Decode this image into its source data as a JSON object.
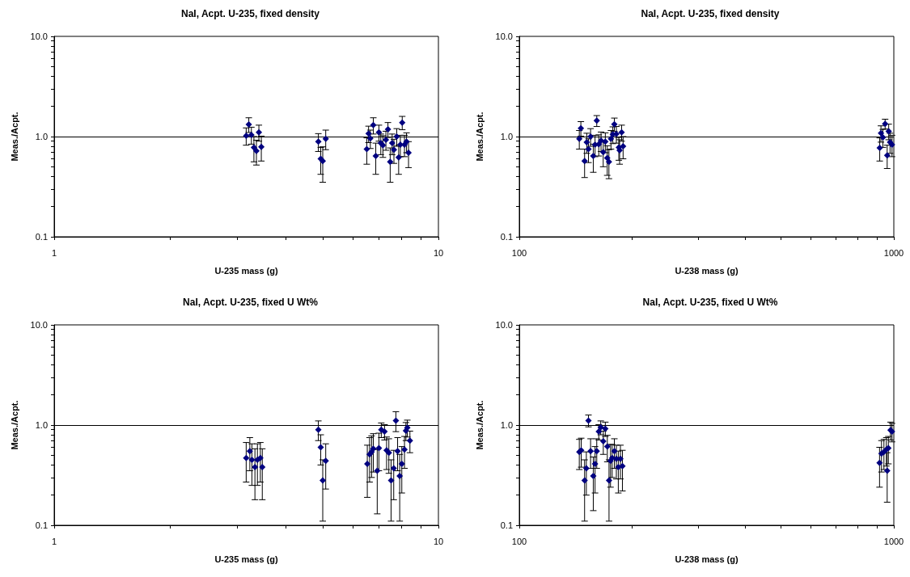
{
  "chart_data": [
    {
      "type": "scatter",
      "title": "NaI, Acpt. U-235, fixed density",
      "xlabel": "U-235 mass (g)",
      "ylabel": "Meas./Acpt.",
      "log": "xy",
      "grid": false,
      "marker": "diamond",
      "xlim": [
        1,
        10
      ],
      "ylim": [
        0.1,
        10
      ],
      "xticks": [
        1,
        {
          "value": 2,
          "label": null
        },
        {
          "value": 3,
          "label": null
        },
        {
          "value": 4,
          "label": null
        },
        {
          "value": 5,
          "label": null
        },
        {
          "value": 6,
          "label": null
        },
        {
          "value": 7,
          "label": null
        },
        {
          "value": 8,
          "label": null
        },
        {
          "value": 9,
          "label": null
        },
        10
      ],
      "yticks": [
        {
          "value": 0.1,
          "label": "0.1"
        },
        {
          "value": 0.2,
          "label": null
        },
        {
          "value": 0.3,
          "label": null
        },
        {
          "value": 0.4,
          "label": null
        },
        {
          "value": 0.5,
          "label": null
        },
        {
          "value": 0.6,
          "label": null
        },
        {
          "value": 0.7,
          "label": null
        },
        {
          "value": 0.8,
          "label": null
        },
        {
          "value": 0.9,
          "label": null
        },
        {
          "value": 1,
          "label": "1.0"
        },
        {
          "value": 2,
          "label": null
        },
        {
          "value": 3,
          "label": null
        },
        {
          "value": 4,
          "label": null
        },
        {
          "value": 5,
          "label": null
        },
        {
          "value": 6,
          "label": null
        },
        {
          "value": 7,
          "label": null
        },
        {
          "value": 8,
          "label": null
        },
        {
          "value": 9,
          "label": null
        },
        {
          "value": 10,
          "label": "10.0"
        }
      ],
      "ref_lines": [
        {
          "axis": "y",
          "value": 1,
          "label": null,
          "color": "#000000"
        }
      ],
      "series": [
        {
          "color": "#000080",
          "x": [
            3.16,
            3.21,
            3.26,
            3.31,
            3.36,
            3.41,
            3.46,
            4.87,
            4.94,
            5.0,
            5.09,
            6.51,
            6.58,
            6.65,
            6.77,
            6.87,
            7.0,
            7.08,
            7.17,
            7.3,
            7.39,
            7.49,
            7.58,
            7.66,
            7.79,
            7.88,
            7.96,
            8.05,
            8.16,
            8.26,
            8.36
          ],
          "values": [
            1.02,
            1.32,
            1.04,
            0.78,
            0.72,
            1.1,
            0.79,
            0.89,
            0.6,
            0.57,
            0.95,
            0.75,
            1.07,
            0.96,
            1.3,
            0.64,
            1.1,
            0.86,
            0.82,
            0.93,
            1.18,
            0.56,
            0.86,
            0.74,
            1.0,
            0.62,
            0.83,
            1.38,
            0.83,
            0.89,
            0.69
          ],
          "errors": [
            0.2,
            0.22,
            0.2,
            0.22,
            0.2,
            0.2,
            0.22,
            0.18,
            0.18,
            0.22,
            0.21,
            0.22,
            0.2,
            0.2,
            0.24,
            0.22,
            0.2,
            0.2,
            0.2,
            0.2,
            0.2,
            0.21,
            0.2,
            0.2,
            0.2,
            0.2,
            0.2,
            0.21,
            0.2,
            0.2,
            0.2
          ]
        }
      ]
    },
    {
      "type": "scatter",
      "title": "NaI, Acpt. U-235, fixed density",
      "xlabel": "U-238 mass (g)",
      "ylabel": "Meas./Acpt.",
      "log": "xy",
      "grid": false,
      "marker": "diamond",
      "xlim": [
        100,
        1000
      ],
      "ylim": [
        0.1,
        10
      ],
      "xticks": [
        100,
        {
          "value": 200,
          "label": null
        },
        {
          "value": 300,
          "label": null
        },
        {
          "value": 400,
          "label": null
        },
        {
          "value": 500,
          "label": null
        },
        {
          "value": 600,
          "label": null
        },
        {
          "value": 700,
          "label": null
        },
        {
          "value": 800,
          "label": null
        },
        {
          "value": 900,
          "label": null
        },
        1000
      ],
      "yticks": [
        {
          "value": 0.1,
          "label": "0.1"
        },
        {
          "value": 0.2,
          "label": null
        },
        {
          "value": 0.3,
          "label": null
        },
        {
          "value": 0.4,
          "label": null
        },
        {
          "value": 0.5,
          "label": null
        },
        {
          "value": 0.6,
          "label": null
        },
        {
          "value": 0.7,
          "label": null
        },
        {
          "value": 0.8,
          "label": null
        },
        {
          "value": 0.9,
          "label": null
        },
        {
          "value": 1,
          "label": "1.0"
        },
        {
          "value": 2,
          "label": null
        },
        {
          "value": 3,
          "label": null
        },
        {
          "value": 4,
          "label": null
        },
        {
          "value": 5,
          "label": null
        },
        {
          "value": 6,
          "label": null
        },
        {
          "value": 7,
          "label": null
        },
        {
          "value": 8,
          "label": null
        },
        {
          "value": 9,
          "label": null
        },
        {
          "value": 10,
          "label": "10.0"
        }
      ],
      "ref_lines": [
        {
          "axis": "y",
          "value": 1,
          "label": null,
          "color": "#000000"
        }
      ],
      "series": [
        {
          "color": "#000080",
          "x": [
            144.6,
            146,
            149.4,
            151.4,
            153,
            155,
            157.6,
            159.3,
            161,
            163,
            165.3,
            167.5,
            169.7,
            171.7,
            173.5,
            175.7,
            177.7,
            179.4,
            181.6,
            184.4,
            185.3,
            187.6,
            189.3,
            917,
            924,
            935,
            948,
            960,
            969,
            977,
            989
          ],
          "values": [
            0.95,
            1.21,
            0.57,
            0.88,
            0.75,
            1.0,
            0.64,
            0.83,
            1.44,
            0.84,
            0.91,
            0.7,
            0.89,
            0.61,
            0.56,
            0.95,
            1.05,
            1.33,
            1.06,
            0.78,
            0.73,
            1.1,
            0.8,
            0.77,
            1.08,
            0.98,
            1.34,
            0.65,
            1.13,
            0.88,
            0.83
          ],
          "errors": [
            0.2,
            0.2,
            0.18,
            0.2,
            0.2,
            0.2,
            0.2,
            0.2,
            0.18,
            0.2,
            0.2,
            0.2,
            0.2,
            0.2,
            0.18,
            0.2,
            0.2,
            0.2,
            0.2,
            0.2,
            0.2,
            0.2,
            0.2,
            0.2,
            0.2,
            0.2,
            0.15,
            0.17,
            0.2,
            0.2,
            0.2
          ]
        }
      ]
    },
    {
      "type": "scatter",
      "title": "NaI, Acpt. U-235, fixed U Wt%",
      "xlabel": "U-235 mass (g)",
      "ylabel": "Meas./Acpt.",
      "log": "xy",
      "grid": false,
      "marker": "diamond",
      "xlim": [
        1,
        10
      ],
      "ylim": [
        0.1,
        10
      ],
      "xticks": [
        1,
        {
          "value": 2,
          "label": null
        },
        {
          "value": 3,
          "label": null
        },
        {
          "value": 4,
          "label": null
        },
        {
          "value": 5,
          "label": null
        },
        {
          "value": 6,
          "label": null
        },
        {
          "value": 7,
          "label": null
        },
        {
          "value": 8,
          "label": null
        },
        {
          "value": 9,
          "label": null
        },
        10
      ],
      "yticks": [
        {
          "value": 0.1,
          "label": "0.1"
        },
        {
          "value": 0.2,
          "label": null
        },
        {
          "value": 0.3,
          "label": null
        },
        {
          "value": 0.4,
          "label": null
        },
        {
          "value": 0.5,
          "label": null
        },
        {
          "value": 0.6,
          "label": null
        },
        {
          "value": 0.7,
          "label": null
        },
        {
          "value": 0.8,
          "label": null
        },
        {
          "value": 0.9,
          "label": null
        },
        {
          "value": 1,
          "label": "1.0"
        },
        {
          "value": 2,
          "label": null
        },
        {
          "value": 3,
          "label": null
        },
        {
          "value": 4,
          "label": null
        },
        {
          "value": 5,
          "label": null
        },
        {
          "value": 6,
          "label": null
        },
        {
          "value": 7,
          "label": null
        },
        {
          "value": 8,
          "label": null
        },
        {
          "value": 9,
          "label": null
        },
        {
          "value": 10,
          "label": "10.0"
        }
      ],
      "ref_lines": [
        {
          "axis": "y",
          "value": 1,
          "label": null,
          "color": "#000000"
        }
      ],
      "series": [
        {
          "color": "#000080",
          "x": [
            3.16,
            3.23,
            3.27,
            3.33,
            3.38,
            3.44,
            3.48,
            4.87,
            4.94,
            5.0,
            5.09,
            6.53,
            6.62,
            6.7,
            6.77,
            6.93,
            7.0,
            7.1,
            7.24,
            7.33,
            7.43,
            7.53,
            7.65,
            7.75,
            7.83,
            7.93,
            8.03,
            8.16,
            8.23,
            8.3,
            8.43
          ],
          "values": [
            0.47,
            0.55,
            0.45,
            0.38,
            0.45,
            0.47,
            0.38,
            0.9,
            0.6,
            0.28,
            0.44,
            0.41,
            0.51,
            0.54,
            0.58,
            0.35,
            0.59,
            0.9,
            0.86,
            0.56,
            0.53,
            0.28,
            0.37,
            1.11,
            0.55,
            0.31,
            0.41,
            0.57,
            0.88,
            0.94,
            0.7
          ],
          "errors": [
            0.2,
            0.2,
            0.2,
            0.2,
            0.2,
            0.2,
            0.2,
            0.2,
            0.2,
            0.17,
            0.21,
            0.22,
            0.24,
            0.24,
            0.24,
            0.22,
            0.24,
            0.15,
            0.15,
            0.2,
            0.2,
            0.17,
            0.19,
            0.25,
            0.2,
            0.2,
            0.2,
            0.2,
            0.18,
            0.18,
            0.17
          ]
        }
      ]
    },
    {
      "type": "scatter",
      "title": "NaI, Acpt. U-235, fixed U Wt%",
      "xlabel": "U-238 mass (g)",
      "ylabel": "Meas./Acpt.",
      "log": "xy",
      "grid": false,
      "marker": "diamond",
      "xlim": [
        100,
        1000
      ],
      "ylim": [
        0.1,
        10
      ],
      "xticks": [
        100,
        {
          "value": 200,
          "label": null
        },
        {
          "value": 300,
          "label": null
        },
        {
          "value": 400,
          "label": null
        },
        {
          "value": 500,
          "label": null
        },
        {
          "value": 600,
          "label": null
        },
        {
          "value": 700,
          "label": null
        },
        {
          "value": 800,
          "label": null
        },
        {
          "value": 900,
          "label": null
        },
        1000
      ],
      "yticks": [
        {
          "value": 0.1,
          "label": "0.1"
        },
        {
          "value": 0.2,
          "label": null
        },
        {
          "value": 0.3,
          "label": null
        },
        {
          "value": 0.4,
          "label": null
        },
        {
          "value": 0.5,
          "label": null
        },
        {
          "value": 0.6,
          "label": null
        },
        {
          "value": 0.7,
          "label": null
        },
        {
          "value": 0.8,
          "label": null
        },
        {
          "value": 0.9,
          "label": null
        },
        {
          "value": 1,
          "label": "1.0"
        },
        {
          "value": 2,
          "label": null
        },
        {
          "value": 3,
          "label": null
        },
        {
          "value": 4,
          "label": null
        },
        {
          "value": 5,
          "label": null
        },
        {
          "value": 6,
          "label": null
        },
        {
          "value": 7,
          "label": null
        },
        {
          "value": 8,
          "label": null
        },
        {
          "value": 9,
          "label": null
        },
        {
          "value": 10,
          "label": "10.0"
        }
      ],
      "ref_lines": [
        {
          "axis": "y",
          "value": 1,
          "label": null,
          "color": "#000000"
        }
      ],
      "series": [
        {
          "color": "#000080",
          "x": [
            144.6,
            146.3,
            149.4,
            151,
            153,
            155,
            157.6,
            159.3,
            161,
            163,
            165,
            167.6,
            169.7,
            171.8,
            173.6,
            175.2,
            177,
            179.4,
            181.6,
            183.8,
            186.2,
            188.5,
            916,
            927,
            941,
            955,
            960,
            967,
            980,
            989
          ],
          "values": [
            0.54,
            0.56,
            0.28,
            0.37,
            1.11,
            0.55,
            0.31,
            0.41,
            0.55,
            0.86,
            0.95,
            0.69,
            0.92,
            0.61,
            0.28,
            0.44,
            0.47,
            0.55,
            0.46,
            0.38,
            0.46,
            0.39,
            0.42,
            0.52,
            0.54,
            0.57,
            0.35,
            0.59,
            0.89,
            0.86
          ],
          "errors": [
            0.18,
            0.18,
            0.17,
            0.17,
            0.15,
            0.18,
            0.17,
            0.2,
            0.18,
            0.15,
            0.15,
            0.18,
            0.15,
            0.18,
            0.17,
            0.2,
            0.17,
            0.18,
            0.17,
            0.17,
            0.17,
            0.17,
            0.18,
            0.18,
            0.18,
            0.18,
            0.18,
            0.18,
            0.18,
            0.18
          ]
        }
      ]
    }
  ]
}
